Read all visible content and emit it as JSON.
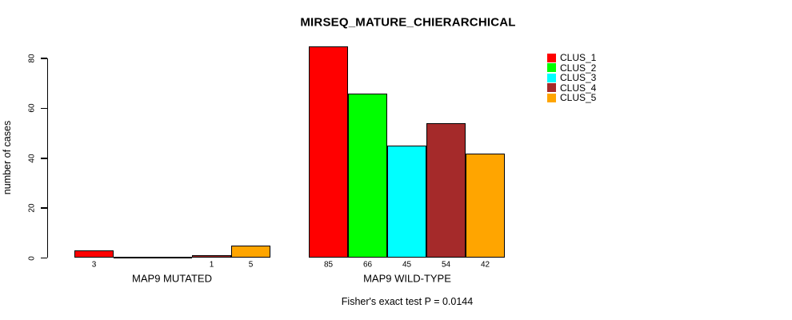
{
  "chart_data": {
    "type": "bar",
    "title": "MIRSEQ_MATURE_CHIERARCHICAL",
    "ylabel": "number of cases",
    "subtitle": "Fisher's exact test P = 0.0144",
    "y_axis": {
      "ticks": [
        0,
        20,
        40,
        60,
        80
      ],
      "max": 80,
      "grid": false
    },
    "legend": {
      "position": "right",
      "entries": [
        {
          "label": "CLUS_1",
          "color": "#FF0000"
        },
        {
          "label": "CLUS_2",
          "color": "#00FF00"
        },
        {
          "label": "CLUS_3",
          "color": "#00FFFF"
        },
        {
          "label": "CLUS_4",
          "color": "#A52A2A"
        },
        {
          "label": "CLUS_5",
          "color": "#FFA500"
        }
      ]
    },
    "groups": [
      {
        "label": "MAP9 MUTATED",
        "values": [
          3,
          0,
          0,
          1,
          5
        ],
        "bar_labels": [
          "3",
          "",
          "",
          "1",
          "5"
        ]
      },
      {
        "label": "MAP9 WILD-TYPE",
        "values": [
          85,
          66,
          45,
          54,
          42
        ],
        "bar_labels": [
          "85",
          "66",
          "45",
          "54",
          "42"
        ]
      }
    ]
  }
}
